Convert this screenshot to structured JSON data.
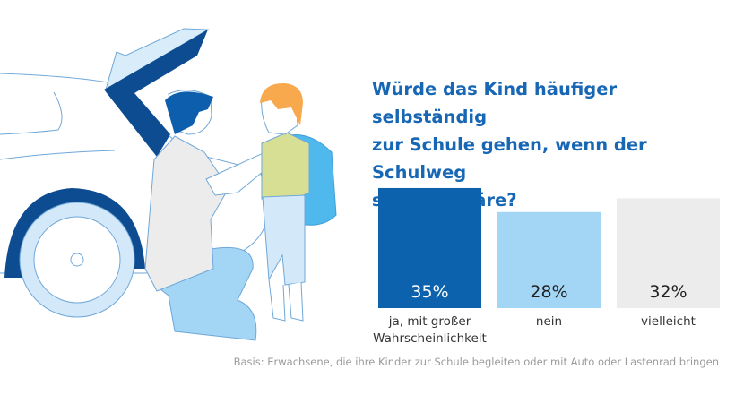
{
  "title": "Würde das Kind häufiger selbständig zur Schule gehen, wenn der Schulweg sicherer wäre?",
  "title_lines": [
    "Würde das Kind häufiger selbständig",
    "zur Schule gehen, wenn der Schulweg",
    "sicherer wäre?"
  ],
  "footnote": "Basis: Erwachsene, die ihre Kinder zur Schule begleiten oder mit Auto oder Lastenrad bringen",
  "illustration": "father kneeling and adjusting child's school backpack next to open car trunk",
  "chart_data": {
    "type": "bar",
    "categories": [
      "ja, mit großer Wahrscheinlichkeit",
      "nein",
      "vielleicht"
    ],
    "category_lines": [
      [
        "ja, mit großer",
        "Wahrscheinlichkeit"
      ],
      [
        "nein"
      ],
      [
        "vielleicht"
      ]
    ],
    "values": [
      35,
      28,
      32
    ],
    "value_labels": [
      "35%",
      "28%",
      "32%"
    ],
    "unit": "%",
    "colors": [
      "#0d62ad",
      "#a3d6f5",
      "#ececec"
    ],
    "label_colors": [
      "#ffffff",
      "#222222",
      "#222222"
    ],
    "grid": false,
    "axes_visible": false
  }
}
